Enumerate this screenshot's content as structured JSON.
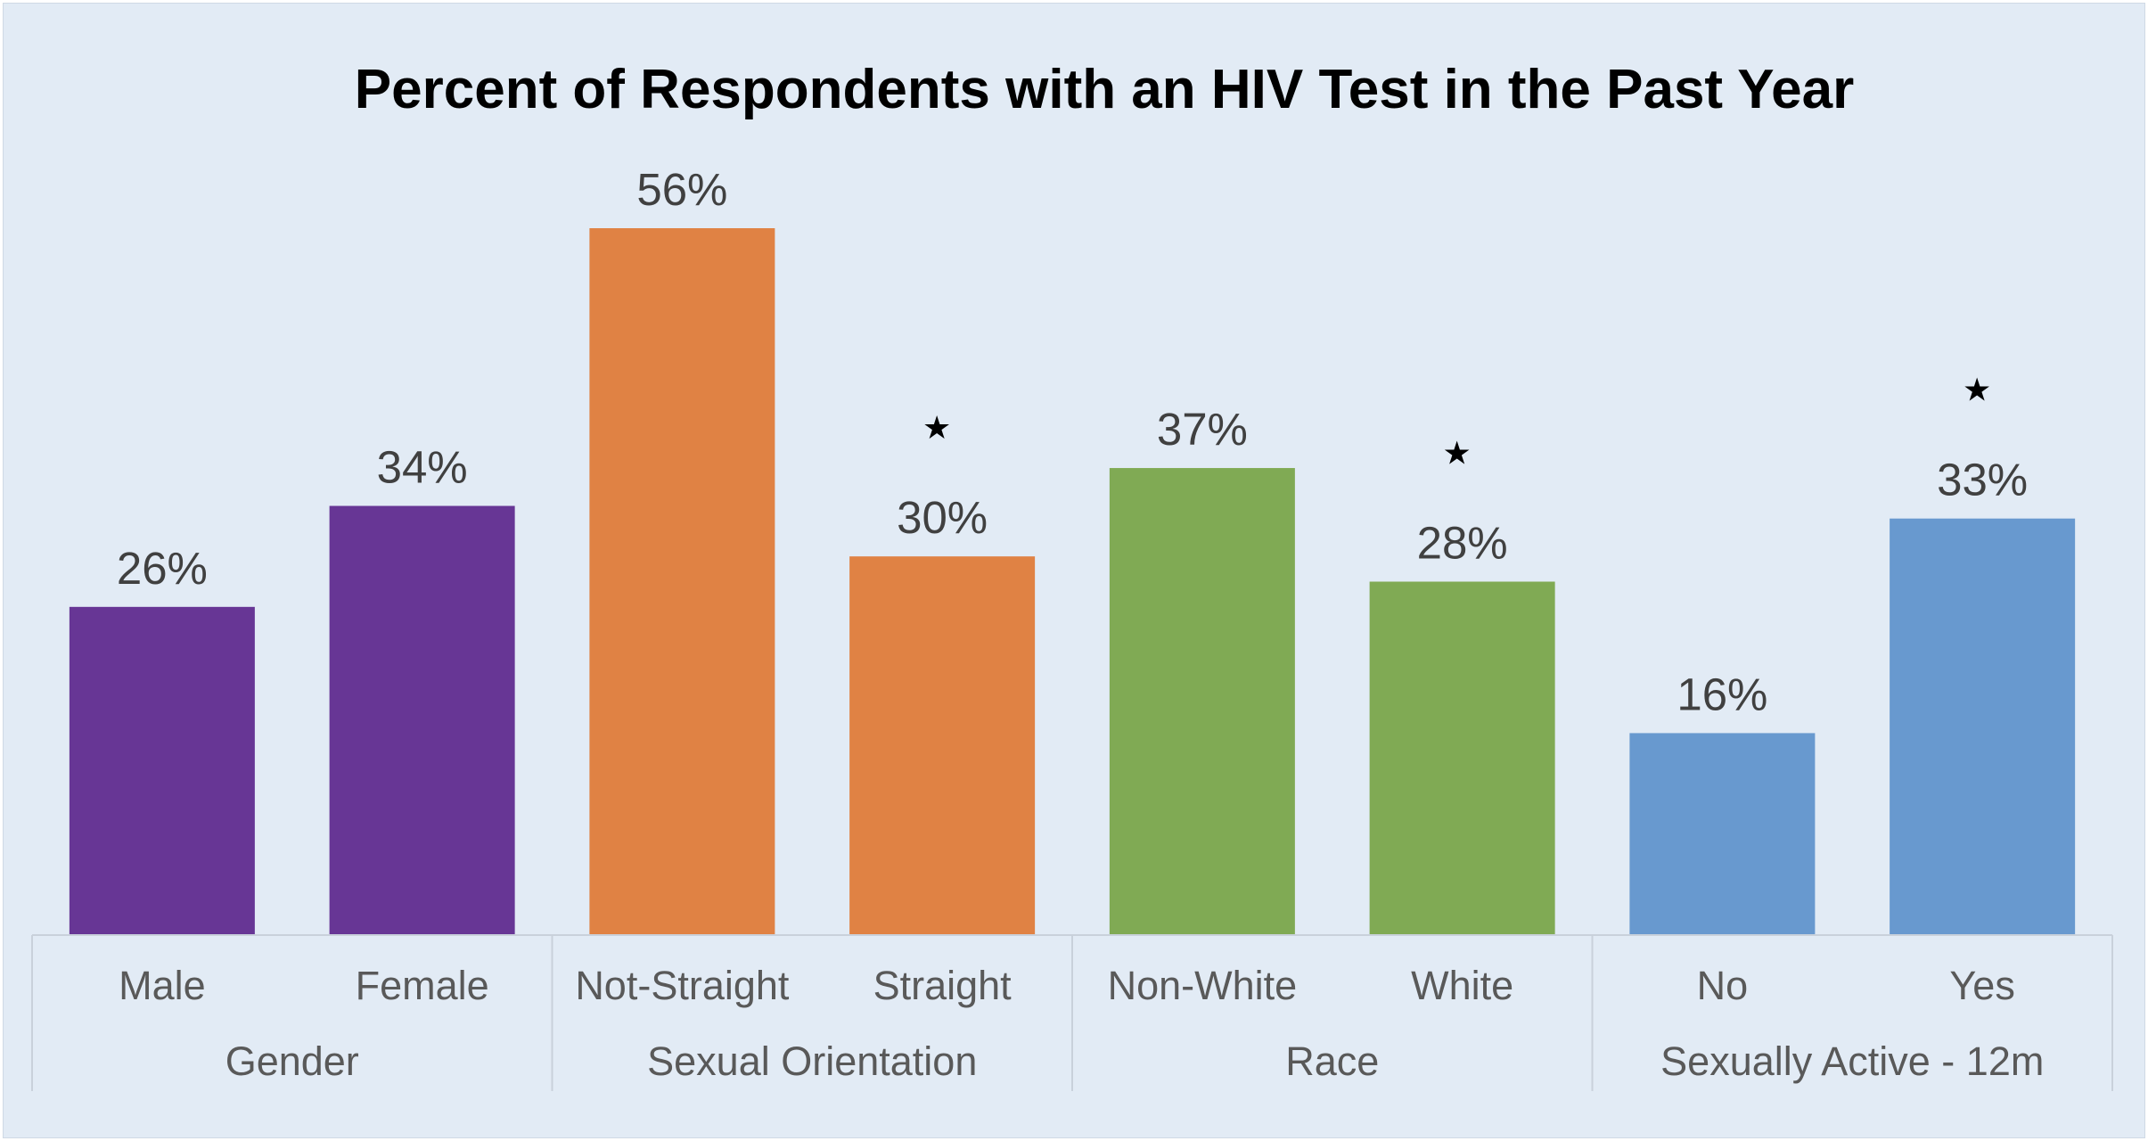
{
  "chart_data": {
    "type": "bar",
    "title": "Percent of Respondents with an HIV Test in the Past Year",
    "xlabel": "",
    "ylabel": "",
    "ylim": [
      0,
      60
    ],
    "grid": false,
    "legend": "none",
    "value_format": "percent",
    "groups": [
      {
        "label": "Gender",
        "categories": [
          "Male",
          "Female"
        ],
        "values": [
          26,
          34
        ],
        "significant": [
          false,
          false
        ],
        "color": "#673695"
      },
      {
        "label": "Sexual Orientation",
        "categories": [
          "Not-Straight",
          "Straight"
        ],
        "values": [
          56,
          30
        ],
        "significant": [
          false,
          true
        ],
        "color": "#e08244"
      },
      {
        "label": "Race",
        "categories": [
          "Non-White",
          "White"
        ],
        "values": [
          37,
          28
        ],
        "significant": [
          false,
          true
        ],
        "color": "#80aa54"
      },
      {
        "label": "Sexually Active - 12m",
        "categories": [
          "No",
          "Yes"
        ],
        "values": [
          16,
          33
        ],
        "significant": [
          false,
          true
        ],
        "color": "#6899cf"
      }
    ],
    "data_labels": [
      "26%",
      "34%",
      "56%",
      "30%",
      "37%",
      "28%",
      "16%",
      "33%"
    ],
    "significance_marker": "★"
  }
}
